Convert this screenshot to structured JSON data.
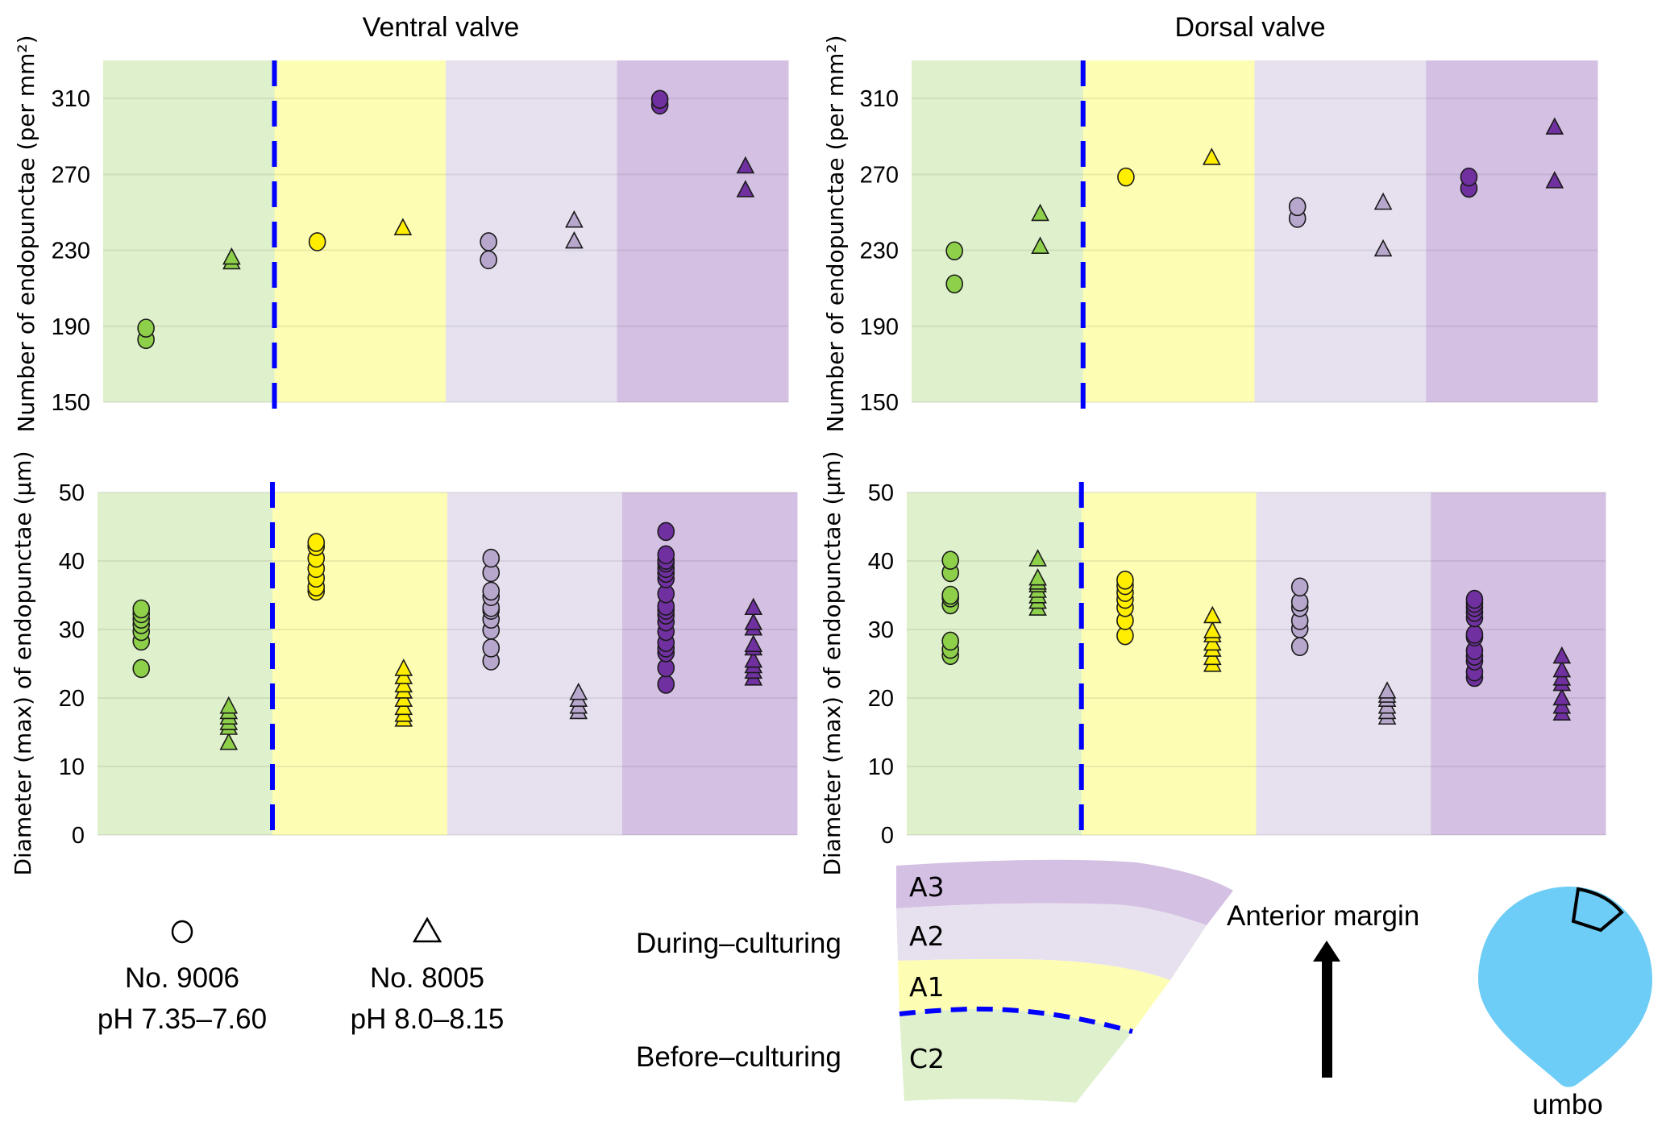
{
  "colors": {
    "region_bg": {
      "C2": "#dff0cc",
      "A1": "#fdfdb3",
      "A2": "#e7e1ef",
      "A3": "#d4c0e3"
    },
    "marker": {
      "C2": "#8fd04b",
      "A1": "#ffee00",
      "A2": "#b7a7cc",
      "A3": "#7030a0"
    },
    "divider": "#0000ff",
    "shell": "#6dcdf6"
  },
  "legend": {
    "series": [
      {
        "symbol": "circle",
        "name": "No. 9006",
        "condition": "pH 7.35–7.60"
      },
      {
        "symbol": "triangle",
        "name": "No. 8005",
        "condition": "pH 8.0–8.15"
      }
    ],
    "periods": {
      "during": "During–culturing",
      "before": "Before–culturing"
    },
    "bands": [
      "A3",
      "A2",
      "A1",
      "C2"
    ],
    "direction_label": "Anterior margin",
    "umbo_label": "umbo"
  },
  "chart_data": [
    {
      "id": "ventral-count",
      "type": "scatter",
      "title": "Ventral valve",
      "xlabel": "",
      "ylabel": "Number of endopunctae (per mm²)",
      "ylim": [
        150,
        330
      ],
      "yticks": [
        150,
        190,
        230,
        270,
        310
      ],
      "grid": true,
      "regions": [
        "C2",
        "A1",
        "A2",
        "A3"
      ],
      "divider_after_region": "C2",
      "series": [
        {
          "name": "No. 9006",
          "symbol": "circle",
          "values": {
            "C2": [
              189,
              183
            ],
            "A1": [
              234.5
            ],
            "A2": [
              234.5,
              225
            ],
            "A3": [
              309.5,
              306.5
            ]
          }
        },
        {
          "name": "No. 8005",
          "symbol": "triangle",
          "values": {
            "C2": [
              226,
              223.5
            ],
            "A1": [
              241.5
            ],
            "A2": [
              245.5,
              234.5
            ],
            "A3": [
              274,
              261.5
            ]
          }
        }
      ]
    },
    {
      "id": "dorsal-count",
      "type": "scatter",
      "title": "Dorsal valve",
      "xlabel": "",
      "ylabel": "Number of endopunctae (per mm²)",
      "ylim": [
        150,
        330
      ],
      "yticks": [
        150,
        190,
        230,
        270,
        310
      ],
      "grid": true,
      "regions": [
        "C2",
        "A1",
        "A2",
        "A3"
      ],
      "divider_after_region": "C2",
      "series": [
        {
          "name": "No. 9006",
          "symbol": "circle",
          "values": {
            "C2": [
              229.7,
              212.3
            ],
            "A1": [
              268.6
            ],
            "A2": [
              253,
              246.8
            ],
            "A3": [
              268.6,
              262.7
            ]
          }
        },
        {
          "name": "No. 8005",
          "symbol": "triangle",
          "values": {
            "C2": [
              249,
              231.7
            ],
            "A1": [
              278.5
            ],
            "A2": [
              254.9,
              230.3
            ],
            "A3": [
              294.5,
              266.2
            ]
          }
        }
      ]
    },
    {
      "id": "ventral-diameter",
      "type": "scatter",
      "title": "",
      "xlabel": "",
      "ylabel": "Diameter (max) of endopunctae (µm)",
      "ylim": [
        0,
        50
      ],
      "yticks": [
        0,
        10,
        20,
        30,
        40,
        50
      ],
      "grid": true,
      "regions": [
        "C2",
        "A1",
        "A2",
        "A3"
      ],
      "divider_after_region": "C2",
      "series": [
        {
          "name": "No. 9006",
          "symbol": "circle",
          "values": {
            "C2": [
              33.0,
              32.3,
              31.5,
              30.7,
              29.7,
              28.3,
              24.3
            ],
            "A1": [
              42.7,
              42.1,
              40.4,
              38.9,
              37.5,
              36.2,
              35.6
            ],
            "A2": [
              40.4,
              38.3,
              35.6,
              34.8,
              33.2,
              32.8,
              31.5,
              29.9,
              27.3,
              25.4
            ],
            "A3": [
              44.3,
              40.9,
              40.1,
              39.7,
              38.9,
              38.2,
              37.4,
              35.2,
              33.4,
              32.8,
              32.1,
              31.1,
              29.7,
              28.1,
              27.3,
              26.6,
              24.4,
              22.0
            ]
          }
        },
        {
          "name": "No. 8005",
          "symbol": "triangle",
          "values": {
            "C2": [
              18.7,
              17.9,
              17.1,
              16.3,
              15.6,
              13.4
            ],
            "A1": [
              24.2,
              23.0,
              21.8,
              20.9,
              19.7,
              18.5,
              17.5,
              16.8
            ],
            "A2": [
              20.7,
              19.7,
              18.7,
              17.9
            ],
            "A3": [
              33.1,
              30.9,
              30.1,
              27.7,
              27.2,
              25.4,
              24.6,
              23.8,
              22.8
            ]
          }
        }
      ]
    },
    {
      "id": "dorsal-diameter",
      "type": "scatter",
      "title": "",
      "xlabel": "",
      "ylabel": "Diameter (max) of endopunctae (µm)",
      "ylim": [
        0,
        50
      ],
      "yticks": [
        0,
        10,
        20,
        30,
        40,
        50
      ],
      "grid": true,
      "regions": [
        "C2",
        "A1",
        "A2",
        "A3"
      ],
      "divider_after_region": "C2",
      "series": [
        {
          "name": "No. 9006",
          "symbol": "circle",
          "values": {
            "C2": [
              40.1,
              38.3,
              35.0,
              34.6,
              33.6,
              28.3,
              27.1,
              26.2
            ],
            "A1": [
              37.2,
              36.4,
              35.4,
              34.4,
              33.2,
              31.3,
              29.1
            ],
            "A2": [
              36.2,
              34.0,
              33.2,
              31.3,
              30.1,
              27.5
            ],
            "A3": [
              34.4,
              33.8,
              33.2,
              32.5,
              31.7,
              29.3,
              28.9,
              26.9,
              26.1,
              25.4,
              23.8,
              23.0
            ]
          }
        },
        {
          "name": "No. 8005",
          "symbol": "triangle",
          "values": {
            "C2": [
              40.2,
              37.4,
              36.8,
              36.4,
              35.6,
              34.8,
              34.0,
              33.0
            ],
            "A1": [
              31.9,
              29.7,
              29.1,
              27.9,
              27.0,
              25.8,
              24.8
            ],
            "A2": [
              20.9,
              20.3,
              19.7,
              18.7,
              17.9,
              17.1
            ],
            "A3": [
              26.0,
              24.0,
              22.8,
              22.0,
              19.9,
              18.7,
              17.7
            ]
          }
        }
      ]
    }
  ]
}
